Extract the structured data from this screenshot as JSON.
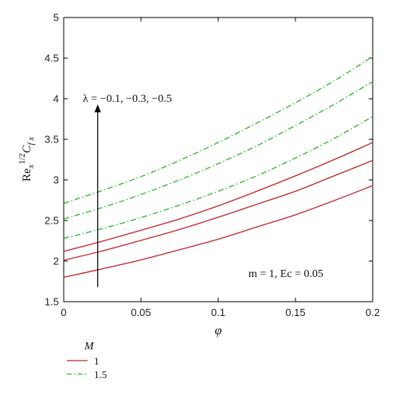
{
  "chart_data": {
    "type": "line",
    "xlabel": "φ",
    "ylabel": {
      "base": "Re",
      "sub_x": "x",
      "sup": "1/2",
      "coef": "C",
      "sub_fx": "f x"
    },
    "xlim": [
      0,
      0.2
    ],
    "ylim": [
      1.5,
      5
    ],
    "x_ticks": [
      0,
      0.05,
      0.1,
      0.15,
      0.2
    ],
    "x_tick_labels": [
      "0",
      "0.05",
      "0.1",
      "0.15",
      "0.2"
    ],
    "y_ticks": [
      1.5,
      2,
      2.5,
      3,
      3.5,
      4,
      4.5,
      5
    ],
    "y_tick_labels": [
      "1.5",
      "2",
      "2.5",
      "3",
      "3.5",
      "4",
      "4.5",
      "5"
    ],
    "grid": false,
    "annotations": {
      "lambda_label": "λ = −0.1, −0.3, −0.5",
      "params_label": "m = 1, Ec = 0.05"
    },
    "arrow": {
      "x": 0.022,
      "y_from": 1.68,
      "y_to": 3.93
    },
    "legend": {
      "title": "M",
      "position": "below-left",
      "entries": [
        {
          "label": "1",
          "style": "solid",
          "color": "#c0262b"
        },
        {
          "label": "1.5",
          "style": "dashdot",
          "color": "#2db52d"
        }
      ]
    },
    "series": [
      {
        "group": "1",
        "style": "solid",
        "color": "#c0262b",
        "x": [
          0,
          0.025,
          0.05,
          0.075,
          0.1,
          0.125,
          0.15,
          0.175,
          0.2
        ],
        "y": [
          1.8,
          1.905,
          2.015,
          2.14,
          2.27,
          2.42,
          2.57,
          2.745,
          2.93
        ]
      },
      {
        "group": "1",
        "style": "solid",
        "color": "#c0262b",
        "x": [
          0,
          0.025,
          0.05,
          0.075,
          0.1,
          0.125,
          0.15,
          0.175,
          0.2
        ],
        "y": [
          2.01,
          2.125,
          2.255,
          2.39,
          2.54,
          2.7,
          2.86,
          3.05,
          3.24
        ]
      },
      {
        "group": "1",
        "style": "solid",
        "color": "#c0262b",
        "x": [
          0,
          0.025,
          0.05,
          0.075,
          0.1,
          0.125,
          0.15,
          0.175,
          0.2
        ],
        "y": [
          2.12,
          2.245,
          2.38,
          2.52,
          2.68,
          2.86,
          3.05,
          3.25,
          3.46
        ]
      },
      {
        "group": "1.5",
        "style": "dashdot",
        "color": "#2db52d",
        "x": [
          0,
          0.025,
          0.05,
          0.075,
          0.1,
          0.125,
          0.15,
          0.175,
          0.2
        ],
        "y": [
          2.28,
          2.4,
          2.535,
          2.69,
          2.86,
          3.05,
          3.27,
          3.51,
          3.78
        ]
      },
      {
        "group": "1.5",
        "style": "dashdot",
        "color": "#2db52d",
        "x": [
          0,
          0.025,
          0.05,
          0.075,
          0.1,
          0.125,
          0.15,
          0.175,
          0.2
        ],
        "y": [
          2.52,
          2.66,
          2.82,
          3.0,
          3.2,
          3.42,
          3.67,
          3.93,
          4.21
        ]
      },
      {
        "group": "1.5",
        "style": "dashdot",
        "color": "#2db52d",
        "x": [
          0,
          0.025,
          0.05,
          0.075,
          0.1,
          0.125,
          0.15,
          0.175,
          0.2
        ],
        "y": [
          2.71,
          2.87,
          3.04,
          3.24,
          3.46,
          3.7,
          3.95,
          4.22,
          4.52
        ]
      }
    ]
  }
}
